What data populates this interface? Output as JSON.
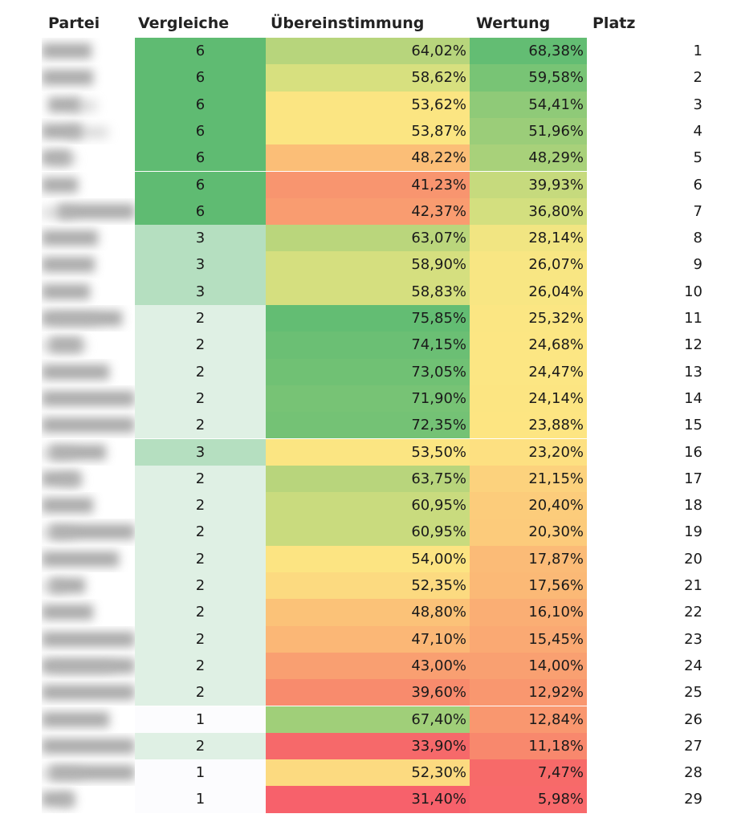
{
  "headers": {
    "partei": "Partei",
    "vergleiche": "Vergleiche",
    "uebereinstimmung": "Übereinstimmung",
    "wertung": "Wertung",
    "platz": "Platz"
  },
  "rows": [
    {
      "vergleiche": "6",
      "uebereinstimmung": "64,02%",
      "wertung": "68,38%",
      "platz": "1",
      "vergleiche_color": "#5fbb72",
      "uebereinstimmung_color": "#b7d57c",
      "wertung_color": "#63bd73"
    },
    {
      "vergleiche": "6",
      "uebereinstimmung": "58,62%",
      "wertung": "59,58%",
      "platz": "2",
      "vergleiche_color": "#5fbb72",
      "uebereinstimmung_color": "#d7e07f",
      "wertung_color": "#78c475"
    },
    {
      "vergleiche": "6",
      "uebereinstimmung": "53,62%",
      "wertung": "54,41%",
      "platz": "3",
      "vergleiche_color": "#5fbb72",
      "uebereinstimmung_color": "#fbe582",
      "wertung_color": "#8fca78"
    },
    {
      "vergleiche": "6",
      "uebereinstimmung": "53,87%",
      "wertung": "51,96%",
      "platz": "4",
      "vergleiche_color": "#5fbb72",
      "uebereinstimmung_color": "#fbe582",
      "wertung_color": "#9bcd79"
    },
    {
      "vergleiche": "6",
      "uebereinstimmung": "48,22%",
      "wertung": "48,29%",
      "platz": "5",
      "vergleiche_color": "#5fbb72",
      "uebereinstimmung_color": "#fbbe77",
      "wertung_color": "#a8d17a"
    },
    {
      "vergleiche": "6",
      "uebereinstimmung": "41,23%",
      "wertung": "39,93%",
      "platz": "6",
      "vergleiche_color": "#5fbb72",
      "uebereinstimmung_color": "#f8956f",
      "wertung_color": "#c6da7d"
    },
    {
      "vergleiche": "6",
      "uebereinstimmung": "42,37%",
      "wertung": "36,80%",
      "platz": "7",
      "vergleiche_color": "#5fbb72",
      "uebereinstimmung_color": "#f99c70",
      "wertung_color": "#d3df7f"
    },
    {
      "vergleiche": "3",
      "uebereinstimmung": "63,07%",
      "wertung": "28,14%",
      "platz": "8",
      "vergleiche_color": "#b5dfc0",
      "uebereinstimmung_color": "#bad67c",
      "wertung_color": "#f1e582"
    },
    {
      "vergleiche": "3",
      "uebereinstimmung": "58,90%",
      "wertung": "26,07%",
      "platz": "9",
      "vergleiche_color": "#b5dfc0",
      "uebereinstimmung_color": "#d5df7f",
      "wertung_color": "#f8e683"
    },
    {
      "vergleiche": "3",
      "uebereinstimmung": "58,83%",
      "wertung": "26,04%",
      "platz": "10",
      "vergleiche_color": "#b5dfc0",
      "uebereinstimmung_color": "#d5df7f",
      "wertung_color": "#f8e683"
    },
    {
      "vergleiche": "2",
      "uebereinstimmung": "75,85%",
      "wertung": "25,32%",
      "platz": "11",
      "vergleiche_color": "#dff0e4",
      "uebereinstimmung_color": "#63bd73",
      "wertung_color": "#fbe683"
    },
    {
      "vergleiche": "2",
      "uebereinstimmung": "74,15%",
      "wertung": "24,68%",
      "platz": "12",
      "vergleiche_color": "#dff0e4",
      "uebereinstimmung_color": "#6bbf74",
      "wertung_color": "#fce683"
    },
    {
      "vergleiche": "2",
      "uebereinstimmung": "73,05%",
      "wertung": "24,47%",
      "platz": "13",
      "vergleiche_color": "#dff0e4",
      "uebereinstimmung_color": "#70c174",
      "wertung_color": "#fce683"
    },
    {
      "vergleiche": "2",
      "uebereinstimmung": "71,90%",
      "wertung": "24,14%",
      "platz": "14",
      "vergleiche_color": "#dff0e4",
      "uebereinstimmung_color": "#77c375",
      "wertung_color": "#fce582"
    },
    {
      "vergleiche": "2",
      "uebereinstimmung": "72,35%",
      "wertung": "23,88%",
      "platz": "15",
      "vergleiche_color": "#dff0e4",
      "uebereinstimmung_color": "#74c275",
      "wertung_color": "#fde582"
    },
    {
      "vergleiche": "3",
      "uebereinstimmung": "53,50%",
      "wertung": "23,20%",
      "platz": "16",
      "vergleiche_color": "#b5dfc0",
      "uebereinstimmung_color": "#fbe582",
      "wertung_color": "#fde081"
    },
    {
      "vergleiche": "2",
      "uebereinstimmung": "63,75%",
      "wertung": "21,15%",
      "platz": "17",
      "vergleiche_color": "#dff0e4",
      "uebereinstimmung_color": "#b8d57c",
      "wertung_color": "#fcd27d"
    },
    {
      "vergleiche": "2",
      "uebereinstimmung": "60,95%",
      "wertung": "20,40%",
      "platz": "18",
      "vergleiche_color": "#dff0e4",
      "uebereinstimmung_color": "#c9db7e",
      "wertung_color": "#fccc7b"
    },
    {
      "vergleiche": "2",
      "uebereinstimmung": "60,95%",
      "wertung": "20,30%",
      "platz": "19",
      "vergleiche_color": "#dff0e4",
      "uebereinstimmung_color": "#c9db7e",
      "wertung_color": "#fccb7b"
    },
    {
      "vergleiche": "2",
      "uebereinstimmung": "54,00%",
      "wertung": "17,87%",
      "platz": "20",
      "vergleiche_color": "#dff0e4",
      "uebereinstimmung_color": "#fce482",
      "wertung_color": "#fbbb77"
    },
    {
      "vergleiche": "2",
      "uebereinstimmung": "52,35%",
      "wertung": "17,56%",
      "platz": "21",
      "vergleiche_color": "#dff0e4",
      "uebereinstimmung_color": "#fcda80",
      "wertung_color": "#fbb976"
    },
    {
      "vergleiche": "2",
      "uebereinstimmung": "48,80%",
      "wertung": "16,10%",
      "platz": "22",
      "vergleiche_color": "#dff0e4",
      "uebereinstimmung_color": "#fbc278",
      "wertung_color": "#faae74"
    },
    {
      "vergleiche": "2",
      "uebereinstimmung": "47,10%",
      "wertung": "15,45%",
      "platz": "23",
      "vergleiche_color": "#dff0e4",
      "uebereinstimmung_color": "#fbb776",
      "wertung_color": "#faa973"
    },
    {
      "vergleiche": "2",
      "uebereinstimmung": "43,00%",
      "wertung": "14,00%",
      "platz": "24",
      "vergleiche_color": "#dff0e4",
      "uebereinstimmung_color": "#f99f71",
      "wertung_color": "#f9a071"
    },
    {
      "vergleiche": "2",
      "uebereinstimmung": "39,60%",
      "wertung": "12,92%",
      "platz": "25",
      "vergleiche_color": "#dff0e4",
      "uebereinstimmung_color": "#f88b6d",
      "wertung_color": "#f9976f"
    },
    {
      "vergleiche": "1",
      "uebereinstimmung": "67,40%",
      "wertung": "12,84%",
      "platz": "26",
      "vergleiche_color": "#fcfcfe",
      "uebereinstimmung_color": "#a0cf79",
      "wertung_color": "#f9976f"
    },
    {
      "vergleiche": "2",
      "uebereinstimmung": "33,90%",
      "wertung": "11,18%",
      "platz": "27",
      "vergleiche_color": "#dff0e4",
      "uebereinstimmung_color": "#f6696a",
      "wertung_color": "#f8886d"
    },
    {
      "vergleiche": "1",
      "uebereinstimmung": "52,30%",
      "wertung": "7,47%",
      "platz": "28",
      "vergleiche_color": "#fcfcfe",
      "uebereinstimmung_color": "#fcda80",
      "wertung_color": "#f76a69"
    },
    {
      "vergleiche": "1",
      "uebereinstimmung": "31,40%",
      "wertung": "5,98%",
      "platz": "29",
      "vergleiche_color": "#fcfcfe",
      "uebereinstimmung_color": "#f7616b",
      "wertung_color": "#f8696b"
    }
  ]
}
